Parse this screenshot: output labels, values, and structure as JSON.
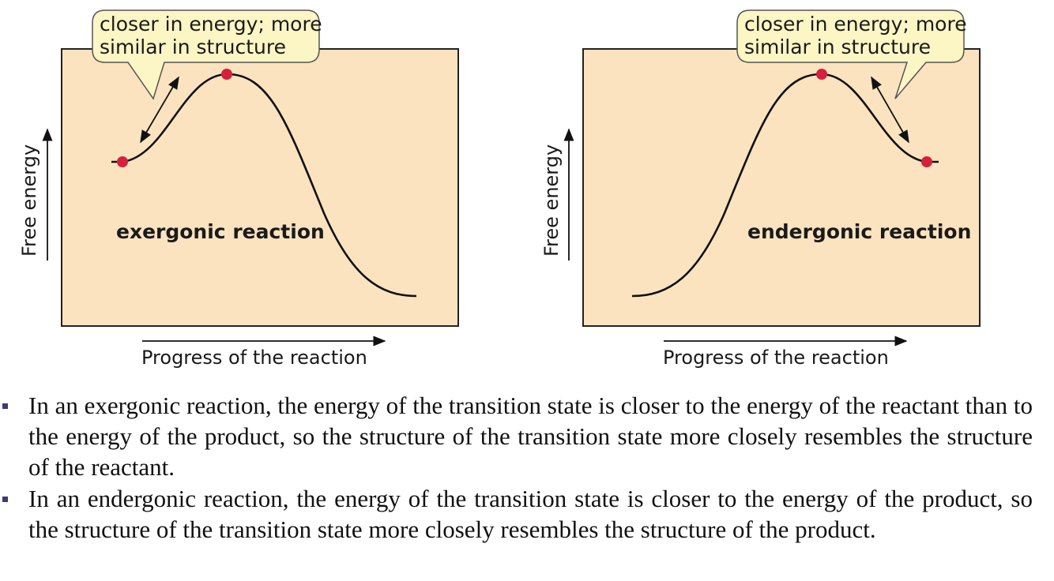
{
  "panels": [
    {
      "callout": [
        "closer in energy; more",
        "similar in structure"
      ],
      "y_axis_label": "Free energy",
      "x_axis_label": "Progress of the reaction",
      "reaction_label": "exergonic reaction"
    },
    {
      "callout": [
        "closer in energy; more",
        "similar in structure"
      ],
      "y_axis_label": "Free energy",
      "x_axis_label": "Progress of the reaction",
      "reaction_label": "endergonic reaction"
    }
  ],
  "bullets": [
    "In an exergonic reaction, the energy of the transition state is closer to the energy of the reactant than to the energy of the product, so the structure of the transition state more closely resembles the structure of the reactant.",
    "In an endergonic reaction, the energy of the transition state is closer to the energy of the product, so the structure of the transition state more closely resembles the structure of the product."
  ],
  "colors": {
    "panel_fill": "#fbe3c0",
    "callout_fill": "#fcf5c4",
    "point": "#d4213d",
    "line": "#111111"
  }
}
